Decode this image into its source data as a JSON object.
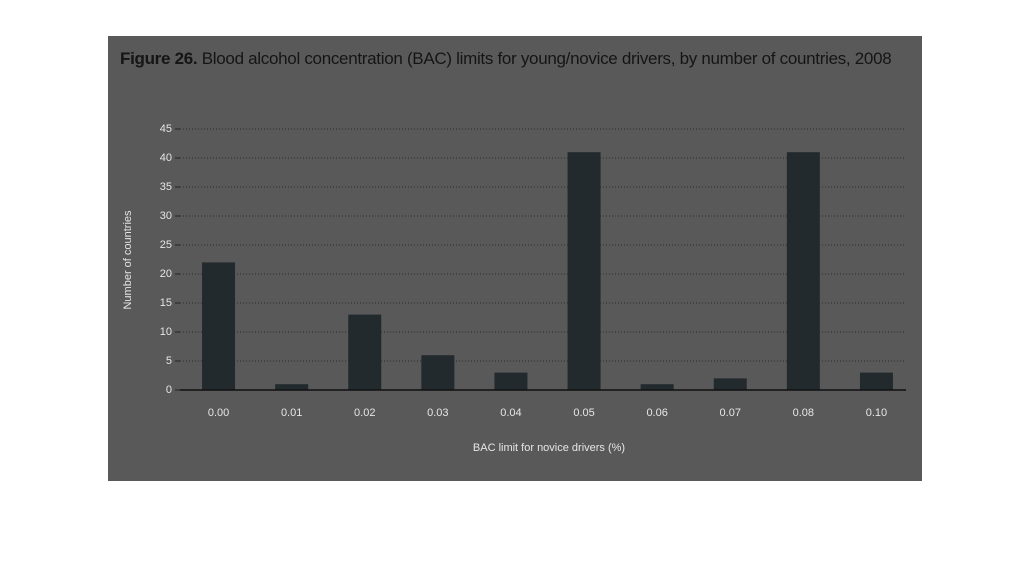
{
  "chart_data": {
    "type": "bar",
    "figure_label": "Figure 26.",
    "title": "Blood alcohol concentration (BAC) limits for young/novice drivers, by number of countries, 2008",
    "x_label": "BAC limit for novice drivers (%)",
    "y_label": "Number of countries",
    "categories": [
      "0.00",
      "0.01",
      "0.02",
      "0.03",
      "0.04",
      "0.05",
      "0.06",
      "0.07",
      "0.08",
      "0.10"
    ],
    "values": [
      22,
      1,
      13,
      6,
      3,
      41,
      1,
      2,
      41,
      3
    ],
    "color": "#222a2e",
    "ylim": [
      0,
      45
    ],
    "yticks": [
      0,
      5,
      10,
      15,
      20,
      25,
      30,
      35,
      40,
      45
    ],
    "grid": true
  }
}
